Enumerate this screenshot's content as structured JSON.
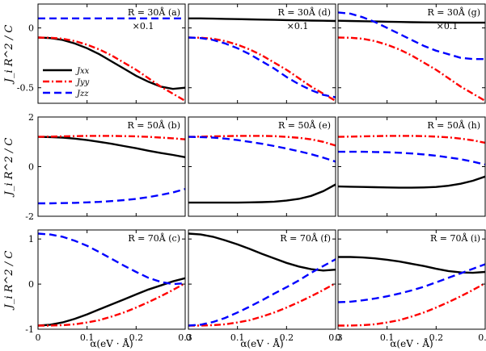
{
  "chart_data": {
    "type": "line",
    "ylabel": "J_i R^2 / C",
    "xlabel": "α(eV · Å)",
    "xlim": [
      0,
      0.3
    ],
    "xticks": [
      "0",
      "0.1",
      "0.2",
      "0.3"
    ],
    "legend": [
      {
        "name": "J_xx",
        "label": "Jxx",
        "color": "#000000",
        "dash": "solid"
      },
      {
        "name": "J_yy",
        "label": "Jyy",
        "color": "#ff0000",
        "dash": "dashdot"
      },
      {
        "name": "J_zz",
        "label": "Jzz",
        "color": "#0000ff",
        "dash": "dashed"
      }
    ],
    "x": [
      0,
      0.025,
      0.05,
      0.075,
      0.1,
      0.125,
      0.15,
      0.175,
      0.2,
      0.225,
      0.25,
      0.275,
      0.3
    ],
    "rows": [
      {
        "R": "R = 30Å",
        "ylim": [
          -0.63,
          0.2
        ],
        "yticks": [
          0,
          -0.5
        ],
        "yticklabels": [
          "0",
          "-0.5"
        ]
      },
      {
        "R": "R = 50Å",
        "ylim": [
          -2,
          2
        ],
        "yticks": [
          2,
          0,
          -2
        ],
        "yticklabels": [
          "2",
          "0",
          "-2"
        ]
      },
      {
        "R": "R = 70Å",
        "ylim": [
          -1,
          1.2
        ],
        "yticks": [
          1,
          0,
          -1
        ],
        "yticklabels": [
          "1",
          "0",
          "-1"
        ]
      }
    ],
    "panels": [
      {
        "id": "a",
        "row": 0,
        "col": 0,
        "label": "R = 30Å (a)",
        "scale_note": "×0.1",
        "scale_color": "#0000ff",
        "legend": true,
        "series": [
          {
            "name": "J_xx",
            "values": [
              -0.08,
              -0.085,
              -0.1,
              -0.13,
              -0.17,
              -0.22,
              -0.28,
              -0.34,
              -0.4,
              -0.45,
              -0.49,
              -0.51,
              -0.5
            ]
          },
          {
            "name": "J_yy",
            "values": [
              -0.08,
              -0.082,
              -0.09,
              -0.11,
              -0.14,
              -0.18,
              -0.23,
              -0.29,
              -0.35,
              -0.42,
              -0.49,
              -0.55,
              -0.61
            ]
          },
          {
            "name": "J_zz",
            "values": [
              0.08,
              0.08,
              0.08,
              0.08,
              0.08,
              0.08,
              0.08,
              0.08,
              0.08,
              0.08,
              0.08,
              0.08,
              0.08
            ]
          }
        ]
      },
      {
        "id": "d",
        "row": 0,
        "col": 1,
        "label": "R = 30Å (d)",
        "scale_note": "×0.1",
        "scale_color": "#000000",
        "legend": false,
        "series": [
          {
            "name": "J_xx",
            "values": [
              0.08,
              0.08,
              0.078,
              0.076,
              0.074,
              0.072,
              0.07,
              0.068,
              0.066,
              0.064,
              0.062,
              0.06,
              0.058
            ]
          },
          {
            "name": "J_yy",
            "values": [
              -0.08,
              -0.082,
              -0.09,
              -0.11,
              -0.14,
              -0.18,
              -0.23,
              -0.29,
              -0.35,
              -0.42,
              -0.49,
              -0.55,
              -0.61
            ]
          },
          {
            "name": "J_zz",
            "values": [
              -0.08,
              -0.085,
              -0.1,
              -0.13,
              -0.17,
              -0.22,
              -0.28,
              -0.34,
              -0.41,
              -0.47,
              -0.52,
              -0.56,
              -0.58
            ]
          }
        ]
      },
      {
        "id": "g",
        "row": 0,
        "col": 2,
        "label": "R = 30Å (g)",
        "scale_note": "×0.1",
        "scale_color": "#000000",
        "legend": false,
        "series": [
          {
            "name": "J_xx",
            "values": [
              0.06,
              0.058,
              0.056,
              0.054,
              0.052,
              0.05,
              0.048,
              0.047,
              0.046,
              0.045,
              0.044,
              0.044,
              0.044
            ]
          },
          {
            "name": "J_yy",
            "values": [
              -0.08,
              -0.082,
              -0.09,
              -0.11,
              -0.14,
              -0.18,
              -0.23,
              -0.29,
              -0.35,
              -0.42,
              -0.49,
              -0.55,
              -0.61
            ]
          },
          {
            "name": "J_zz",
            "values": [
              0.13,
              0.12,
              0.09,
              0.05,
              0.0,
              -0.05,
              -0.1,
              -0.15,
              -0.19,
              -0.22,
              -0.25,
              -0.26,
              -0.26
            ]
          }
        ]
      },
      {
        "id": "b",
        "row": 1,
        "col": 0,
        "label": "R = 50Å (b)",
        "legend": false,
        "series": [
          {
            "name": "J_xx",
            "values": [
              1.2,
              1.19,
              1.17,
              1.13,
              1.07,
              1.0,
              0.92,
              0.83,
              0.74,
              0.64,
              0.55,
              0.47,
              0.38
            ]
          },
          {
            "name": "J_yy",
            "values": [
              1.2,
              1.21,
              1.22,
              1.23,
              1.24,
              1.24,
              1.24,
              1.23,
              1.22,
              1.2,
              1.17,
              1.14,
              1.1
            ]
          },
          {
            "name": "J_zz",
            "values": [
              -1.48,
              -1.48,
              -1.47,
              -1.46,
              -1.44,
              -1.42,
              -1.39,
              -1.35,
              -1.3,
              -1.23,
              -1.14,
              -1.04,
              -0.9
            ]
          }
        ]
      },
      {
        "id": "e",
        "row": 1,
        "col": 1,
        "label": "R = 50Å (e)",
        "legend": false,
        "series": [
          {
            "name": "J_xx",
            "values": [
              -1.45,
              -1.45,
              -1.45,
              -1.45,
              -1.45,
              -1.44,
              -1.43,
              -1.41,
              -1.37,
              -1.3,
              -1.18,
              -0.99,
              -0.72
            ]
          },
          {
            "name": "J_yy",
            "values": [
              1.2,
              1.21,
              1.22,
              1.23,
              1.24,
              1.24,
              1.24,
              1.23,
              1.2,
              1.16,
              1.1,
              1.0,
              0.85
            ]
          },
          {
            "name": "J_zz",
            "values": [
              1.2,
              1.19,
              1.17,
              1.13,
              1.07,
              1.0,
              0.92,
              0.83,
              0.73,
              0.62,
              0.5,
              0.36,
              0.2
            ]
          }
        ]
      },
      {
        "id": "h",
        "row": 1,
        "col": 2,
        "label": "R = 50Å (h)",
        "legend": false,
        "series": [
          {
            "name": "J_xx",
            "values": [
              -0.8,
              -0.81,
              -0.82,
              -0.83,
              -0.84,
              -0.85,
              -0.85,
              -0.84,
              -0.82,
              -0.77,
              -0.69,
              -0.57,
              -0.4
            ]
          },
          {
            "name": "J_yy",
            "values": [
              1.2,
              1.21,
              1.22,
              1.23,
              1.24,
              1.24,
              1.24,
              1.23,
              1.21,
              1.18,
              1.13,
              1.06,
              0.96
            ]
          },
          {
            "name": "J_zz",
            "values": [
              0.6,
              0.6,
              0.6,
              0.59,
              0.58,
              0.56,
              0.53,
              0.49,
              0.44,
              0.37,
              0.3,
              0.2,
              0.08
            ]
          }
        ]
      },
      {
        "id": "c",
        "row": 2,
        "col": 0,
        "label": "R = 70Å (c)",
        "legend": false,
        "series": [
          {
            "name": "J_xx",
            "values": [
              -0.92,
              -0.9,
              -0.85,
              -0.77,
              -0.67,
              -0.56,
              -0.45,
              -0.34,
              -0.23,
              -0.12,
              -0.03,
              0.06,
              0.13
            ]
          },
          {
            "name": "J_yy",
            "values": [
              -0.92,
              -0.92,
              -0.91,
              -0.89,
              -0.85,
              -0.8,
              -0.72,
              -0.63,
              -0.52,
              -0.4,
              -0.27,
              -0.13,
              0.02
            ]
          },
          {
            "name": "J_zz",
            "values": [
              1.12,
              1.1,
              1.05,
              0.96,
              0.85,
              0.71,
              0.56,
              0.41,
              0.27,
              0.14,
              0.05,
              0.0,
              0.02
            ]
          }
        ]
      },
      {
        "id": "f",
        "row": 2,
        "col": 1,
        "label": "R = 70Å (f)",
        "legend": false,
        "series": [
          {
            "name": "J_xx",
            "values": [
              1.12,
              1.1,
              1.05,
              0.97,
              0.88,
              0.78,
              0.67,
              0.57,
              0.47,
              0.39,
              0.33,
              0.3,
              0.32
            ]
          },
          {
            "name": "J_yy",
            "values": [
              -0.92,
              -0.92,
              -0.91,
              -0.89,
              -0.85,
              -0.8,
              -0.72,
              -0.63,
              -0.52,
              -0.4,
              -0.27,
              -0.13,
              0.02
            ]
          },
          {
            "name": "J_zz",
            "values": [
              -0.92,
              -0.9,
              -0.84,
              -0.75,
              -0.63,
              -0.5,
              -0.36,
              -0.21,
              -0.07,
              0.08,
              0.25,
              0.4,
              0.55
            ]
          }
        ]
      },
      {
        "id": "i",
        "row": 2,
        "col": 2,
        "label": "R = 70Å (i)",
        "legend": false,
        "series": [
          {
            "name": "J_xx",
            "values": [
              0.6,
              0.6,
              0.59,
              0.57,
              0.54,
              0.5,
              0.45,
              0.4,
              0.34,
              0.29,
              0.26,
              0.25,
              0.27
            ]
          },
          {
            "name": "J_yy",
            "values": [
              -0.92,
              -0.92,
              -0.91,
              -0.89,
              -0.85,
              -0.8,
              -0.72,
              -0.63,
              -0.52,
              -0.4,
              -0.27,
              -0.13,
              0.02
            ]
          },
          {
            "name": "J_zz",
            "values": [
              -0.4,
              -0.39,
              -0.36,
              -0.32,
              -0.27,
              -0.21,
              -0.14,
              -0.06,
              0.04,
              0.14,
              0.24,
              0.34,
              0.44
            ]
          }
        ]
      }
    ]
  }
}
